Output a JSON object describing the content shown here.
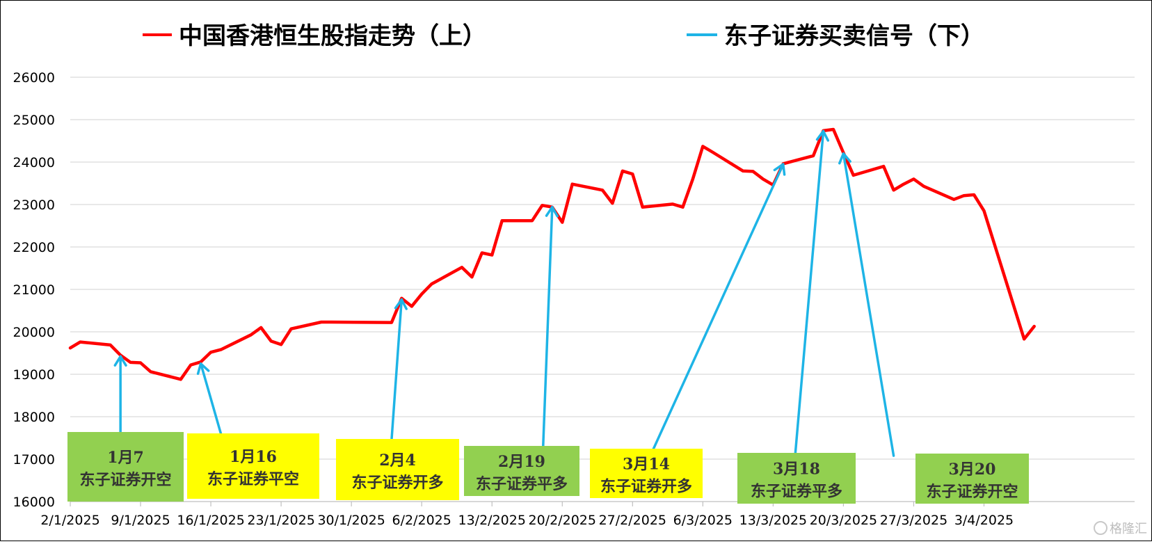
{
  "chart_data": {
    "type": "line",
    "title": "",
    "xlabel": "",
    "ylabel": "",
    "ylim": [
      16000,
      26000
    ],
    "xlim": [
      "2025-01-02",
      "2025-04-18"
    ],
    "grid": true,
    "y_ticks": [
      16000,
      17000,
      18000,
      19000,
      20000,
      21000,
      22000,
      23000,
      24000,
      25000,
      26000
    ],
    "x_ticks": [
      {
        "date": "2025-01-02",
        "label": "2/1/2025"
      },
      {
        "date": "2025-01-09",
        "label": "9/1/2025"
      },
      {
        "date": "2025-01-16",
        "label": "16/1/2025"
      },
      {
        "date": "2025-01-23",
        "label": "23/1/2025"
      },
      {
        "date": "2025-01-30",
        "label": "30/1/2025"
      },
      {
        "date": "2025-02-06",
        "label": "6/2/2025"
      },
      {
        "date": "2025-02-13",
        "label": "13/2/2025"
      },
      {
        "date": "2025-02-20",
        "label": "20/2/2025"
      },
      {
        "date": "2025-02-27",
        "label": "27/2/2025"
      },
      {
        "date": "2025-03-06",
        "label": "6/3/2025"
      },
      {
        "date": "2025-03-13",
        "label": "13/3/2025"
      },
      {
        "date": "2025-03-20",
        "label": "20/3/2025"
      },
      {
        "date": "2025-03-27",
        "label": "27/3/2025"
      },
      {
        "date": "2025-04-03",
        "label": "3/4/2025"
      }
    ],
    "legend": {
      "placement": "top",
      "entries": [
        {
          "name": "中国香港恒生股指走势（上）",
          "color": "#ff0000"
        },
        {
          "name": "东子证券买卖信号（下）",
          "color": "#1eb4e6"
        }
      ]
    },
    "series": [
      {
        "name": "中国香港恒生股指走势（上）",
        "color": "#ff0000",
        "points": [
          [
            "2025-01-02",
            19620
          ],
          [
            "2025-01-03",
            19760
          ],
          [
            "2025-01-06",
            19690
          ],
          [
            "2025-01-07",
            19450
          ],
          [
            "2025-01-08",
            19280
          ],
          [
            "2025-01-09",
            19270
          ],
          [
            "2025-01-10",
            19060
          ],
          [
            "2025-01-13",
            18880
          ],
          [
            "2025-01-14",
            19220
          ],
          [
            "2025-01-15",
            19290
          ],
          [
            "2025-01-16",
            19520
          ],
          [
            "2025-01-17",
            19580
          ],
          [
            "2025-01-20",
            19930
          ],
          [
            "2025-01-21",
            20100
          ],
          [
            "2025-01-22",
            19780
          ],
          [
            "2025-01-23",
            19700
          ],
          [
            "2025-01-24",
            20070
          ],
          [
            "2025-01-27",
            20230
          ],
          [
            "2025-01-28",
            20230
          ],
          [
            "2025-02-03",
            20220
          ],
          [
            "2025-02-04",
            20790
          ],
          [
            "2025-02-05",
            20600
          ],
          [
            "2025-02-06",
            20890
          ],
          [
            "2025-02-07",
            21130
          ],
          [
            "2025-02-10",
            21520
          ],
          [
            "2025-02-11",
            21290
          ],
          [
            "2025-02-12",
            21860
          ],
          [
            "2025-02-13",
            21810
          ],
          [
            "2025-02-14",
            22620
          ],
          [
            "2025-02-17",
            22620
          ],
          [
            "2025-02-18",
            22980
          ],
          [
            "2025-02-19",
            22940
          ],
          [
            "2025-02-20",
            22580
          ],
          [
            "2025-02-21",
            23480
          ],
          [
            "2025-02-24",
            23340
          ],
          [
            "2025-02-25",
            23030
          ],
          [
            "2025-02-26",
            23790
          ],
          [
            "2025-02-27",
            23720
          ],
          [
            "2025-02-28",
            22940
          ],
          [
            "2025-03-03",
            23010
          ],
          [
            "2025-03-04",
            22940
          ],
          [
            "2025-03-05",
            23600
          ],
          [
            "2025-03-06",
            24370
          ],
          [
            "2025-03-07",
            24230
          ],
          [
            "2025-03-10",
            23790
          ],
          [
            "2025-03-11",
            23780
          ],
          [
            "2025-03-12",
            23600
          ],
          [
            "2025-03-13",
            23460
          ],
          [
            "2025-03-14",
            23960
          ],
          [
            "2025-03-17",
            24150
          ],
          [
            "2025-03-18",
            24740
          ],
          [
            "2025-03-19",
            24770
          ],
          [
            "2025-03-20",
            24220
          ],
          [
            "2025-03-21",
            23690
          ],
          [
            "2025-03-24",
            23900
          ],
          [
            "2025-03-25",
            23340
          ],
          [
            "2025-03-26",
            23480
          ],
          [
            "2025-03-27",
            23600
          ],
          [
            "2025-03-28",
            23430
          ],
          [
            "2025-03-31",
            23120
          ],
          [
            "2025-04-01",
            23210
          ],
          [
            "2025-04-02",
            23230
          ],
          [
            "2025-04-03",
            22850
          ],
          [
            "2025-04-07",
            19830
          ],
          [
            "2025-04-08",
            20130
          ]
        ]
      },
      {
        "name": "东子证券买卖信号（下）",
        "color": "#1eb4e6",
        "signals": [
          {
            "date_label": "1月7",
            "action": "东子证券开空",
            "box_color": "#92d050",
            "from": [
              "2025-01-07",
              17300
            ],
            "to": [
              "2025-01-07",
              19420
            ]
          },
          {
            "date_label": "1月16",
            "action": "东子证券平空",
            "box_color": "#ffff00",
            "from": [
              "2025-01-17",
              17600
            ],
            "to": [
              "2025-01-15",
              19250
            ]
          },
          {
            "date_label": "2月4",
            "action": "东子证券开多",
            "box_color": "#ffff00",
            "from": [
              "2025-02-03",
              17450
            ],
            "to": [
              "2025-02-04",
              20760
            ]
          },
          {
            "date_label": "2月19",
            "action": "东子证券平多",
            "box_color": "#92d050",
            "from": [
              "2025-02-18",
              16720
            ],
            "to": [
              "2025-02-19",
              22940
            ]
          },
          {
            "date_label": "3月14",
            "action": "东子证券开多",
            "box_color": "#ffff00",
            "from": [
              "2025-02-28",
              16680
            ],
            "to": [
              "2025-03-14",
              23950
            ]
          },
          {
            "date_label": "3月18",
            "action": "东子证券平多",
            "box_color": "#92d050",
            "from": [
              "2025-03-15",
              16560
            ],
            "to": [
              "2025-03-18",
              24730
            ]
          },
          {
            "date_label": "3月20",
            "action": "东子证券开空",
            "box_color": "#92d050",
            "from": [
              "2025-03-25",
              17080
            ],
            "to": [
              "2025-03-20",
              24200
            ]
          }
        ]
      }
    ]
  },
  "watermark": "格隆汇"
}
